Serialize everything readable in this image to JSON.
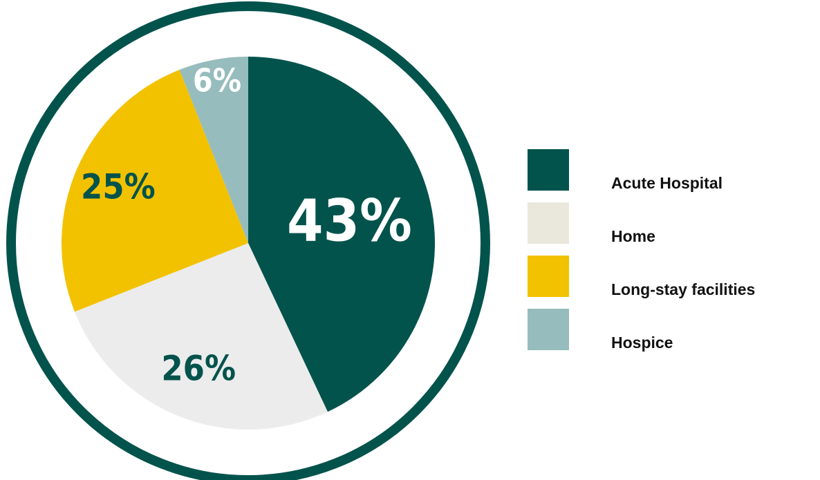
{
  "chart_data": {
    "type": "pie",
    "title": "",
    "categories": [
      "Acute Hospital",
      "Home",
      "Long-stay facilities",
      "Hospice"
    ],
    "values": [
      43,
      26,
      25,
      6
    ],
    "labels": [
      "43%",
      "26%",
      "25%",
      "6%"
    ],
    "colors": [
      "#02534c",
      "#ececec",
      "#f2c200",
      "#96bcbd"
    ],
    "legend_colors": [
      "#02534c",
      "#eae8dc",
      "#f2c200",
      "#96bcbd"
    ],
    "label_colors": [
      "#ffffff",
      "#02534c",
      "#02534c",
      "#ffffff"
    ],
    "ring_color": "#02534c",
    "legend_position": "right",
    "start_angle_deg": 0,
    "direction": "clockwise"
  }
}
